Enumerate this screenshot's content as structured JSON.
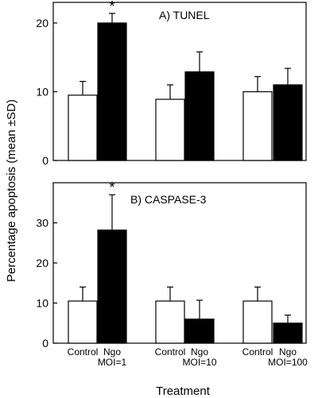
{
  "figure": {
    "ylabel": "Percentage apoptosis (mean ±SD)",
    "xlabel": "Treatment"
  },
  "chart_data": [
    {
      "type": "bar",
      "title": "A) TUNEL",
      "categories": [
        "MOI=1",
        "MOI=10",
        "MOI=100"
      ],
      "series": [
        {
          "name": "Control",
          "values": [
            9.5,
            8.9,
            10.0
          ],
          "sd": [
            2.0,
            2.1,
            2.2
          ]
        },
        {
          "name": "Ngo",
          "values": [
            20.0,
            12.9,
            11.0
          ],
          "sd": [
            1.4,
            2.9,
            2.4
          ]
        }
      ],
      "ylim": [
        0,
        23
      ],
      "yticks": [
        0,
        10,
        20
      ],
      "annotations": [
        {
          "text": "*",
          "series": 1,
          "category": 0
        }
      ]
    },
    {
      "type": "bar",
      "title": "B) CASPASE-3",
      "categories": [
        "MOI=1",
        "MOI=10",
        "MOI=100"
      ],
      "series": [
        {
          "name": "Control",
          "values": [
            10.5,
            10.5,
            10.5
          ],
          "sd": [
            3.5,
            3.5,
            3.5
          ]
        },
        {
          "name": "Ngo",
          "values": [
            28.2,
            6.0,
            5.0
          ],
          "sd": [
            8.8,
            4.7,
            2.0
          ]
        }
      ],
      "ylim": [
        0,
        40
      ],
      "yticks": [
        0,
        10,
        20,
        30
      ],
      "annotations": [
        {
          "text": "*",
          "series": 1,
          "category": 0
        }
      ]
    }
  ],
  "colors": {
    "control": "#ffffff",
    "ngo": "#000000"
  }
}
